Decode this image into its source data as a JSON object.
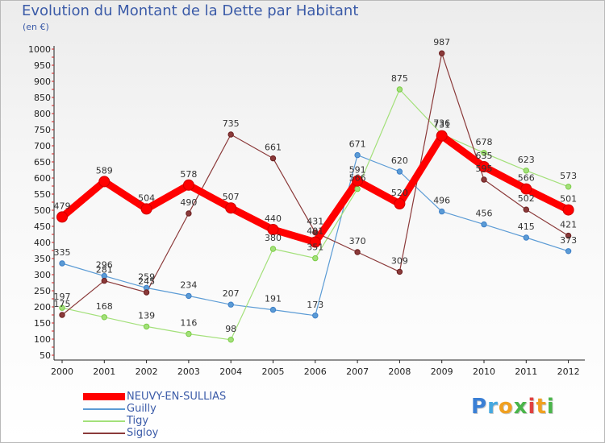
{
  "header": {
    "title": "Evolution du Montant de la Dette par Habitant",
    "subtitle": "(en €)"
  },
  "brand": {
    "letters": [
      {
        "ch": "P",
        "color": "#3a7fd5"
      },
      {
        "ch": "r",
        "color": "#45a8e0"
      },
      {
        "ch": "o",
        "color": "#f0a020"
      },
      {
        "ch": "x",
        "color": "#4ab54a"
      },
      {
        "ch": "i",
        "color": "#e04040"
      },
      {
        "ch": "t",
        "color": "#f0a020"
      },
      {
        "ch": "i",
        "color": "#4ab54a"
      }
    ]
  },
  "chart_data": {
    "type": "line",
    "title": "Evolution du Montant de la Dette par Habitant",
    "subtitle": "(en €)",
    "xlabel": "",
    "ylabel": "",
    "categories": [
      "2000",
      "2001",
      "2002",
      "2003",
      "2004",
      "2005",
      "2006",
      "2007",
      "2008",
      "2009",
      "2010",
      "2011",
      "2012"
    ],
    "ylim": [
      50,
      1000
    ],
    "yticks": [
      50,
      100,
      150,
      200,
      250,
      300,
      350,
      400,
      450,
      500,
      550,
      600,
      650,
      700,
      750,
      800,
      850,
      900,
      950,
      1000
    ],
    "grid": false,
    "legend_position": "bottom-left",
    "series": [
      {
        "name": "NEUVY-EN-SULLIAS",
        "color": "#ff0000",
        "marker": "#ee0000",
        "thick": true,
        "values": [
          479,
          589,
          504,
          578,
          507,
          440,
          401,
          591,
          520,
          731,
          635,
          566,
          501
        ]
      },
      {
        "name": "Guilly",
        "color": "#5b9bd5",
        "marker": "#3d7fc8",
        "thick": false,
        "values": [
          335,
          296,
          259,
          234,
          207,
          191,
          173,
          671,
          620,
          496,
          456,
          415,
          373
        ]
      },
      {
        "name": "Tigy",
        "color": "#a3e07a",
        "marker": "#7acc45",
        "thick": false,
        "values": [
          197,
          168,
          139,
          116,
          98,
          380,
          351,
          566,
          875,
          736,
          678,
          623,
          573
        ]
      },
      {
        "name": "Sigloy",
        "color": "#8b3a3a",
        "marker": "#6b1f1f",
        "thick": false,
        "values": [
          175,
          281,
          245,
          490,
          735,
          661,
          431,
          370,
          309,
          987,
          595,
          502,
          421
        ]
      }
    ]
  }
}
